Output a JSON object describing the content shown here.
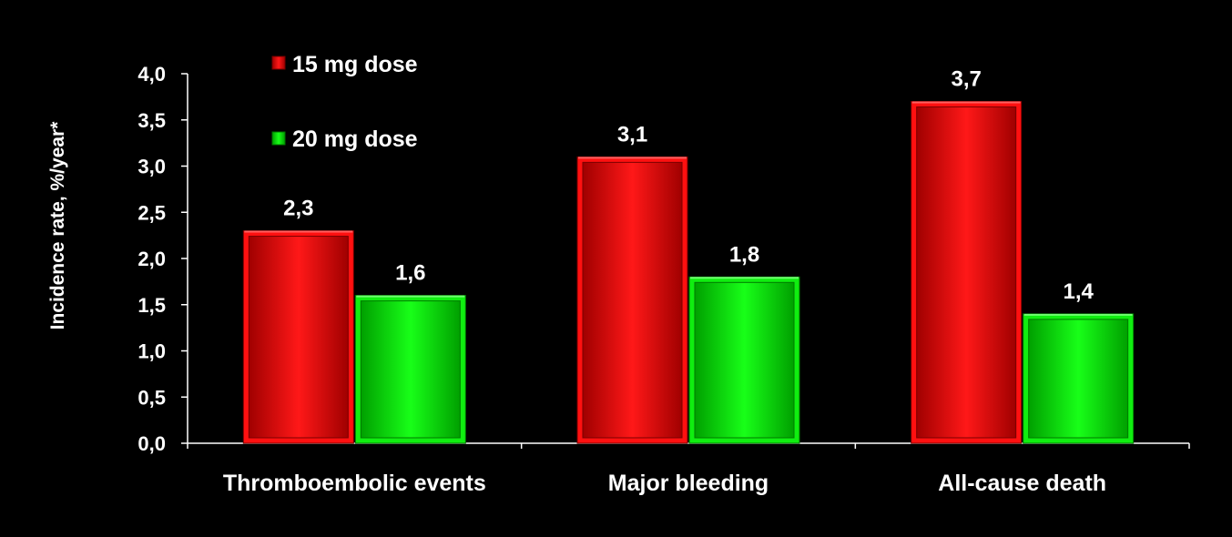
{
  "chart_data": {
    "type": "bar",
    "title": "",
    "xlabel": "",
    "ylabel": "Incidence rate, %/year*",
    "ylim": [
      0,
      4
    ],
    "ytick_step": 0.5,
    "ytick_labels": [
      "0,0",
      "0,5",
      "1,0",
      "1,5",
      "2,0",
      "2,5",
      "3,0",
      "3,5",
      "4,0"
    ],
    "categories": [
      "Thromboembolic events",
      "Major bleeding",
      "All-cause death"
    ],
    "series": [
      {
        "name": "15 mg dose",
        "color": "#ff1010",
        "values": [
          2.3,
          3.1,
          3.7
        ],
        "labels": [
          "2,3",
          "3,1",
          "3,7"
        ]
      },
      {
        "name": "20 mg dose",
        "color": "#10ee10",
        "values": [
          1.6,
          1.8,
          1.4
        ],
        "labels": [
          "1,6",
          "1,8",
          "1,4"
        ]
      }
    ],
    "legend_position": "top-left",
    "grid": false
  }
}
